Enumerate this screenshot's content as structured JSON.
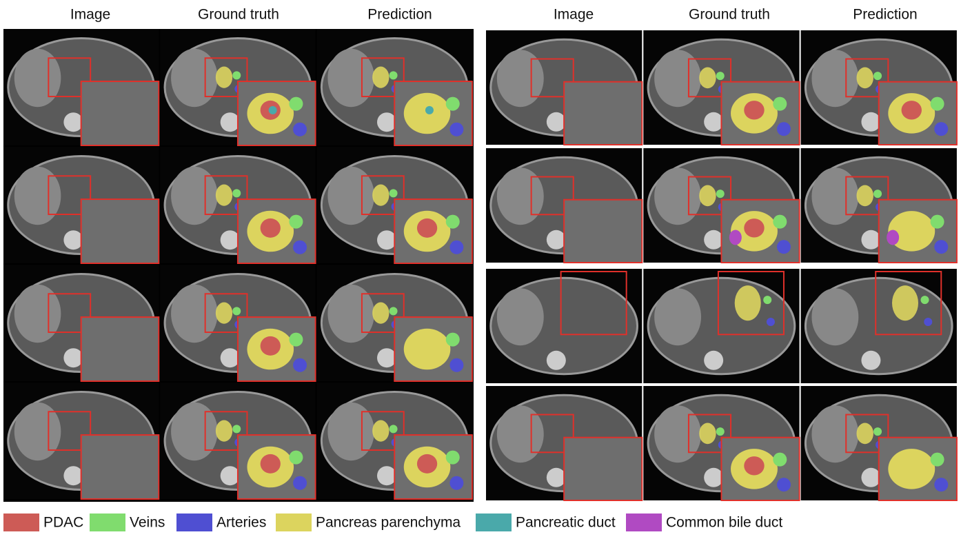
{
  "columns": {
    "left": [
      "Image",
      "Ground truth",
      "Prediction"
    ],
    "right": [
      "Image",
      "Ground truth",
      "Prediction"
    ]
  },
  "legend": {
    "items": [
      {
        "label": "PDAC",
        "color": "#cd5b56"
      },
      {
        "label": "Veins",
        "color": "#80dc6e"
      },
      {
        "label": "Arteries",
        "color": "#4f4fd2"
      },
      {
        "label": "Pancreas parenchyma",
        "color": "#dcd45e"
      },
      {
        "label": "Pancreatic duct",
        "color": "#4aa9aa"
      },
      {
        "label": "Common bile duct",
        "color": "#b04ac2"
      }
    ]
  }
}
